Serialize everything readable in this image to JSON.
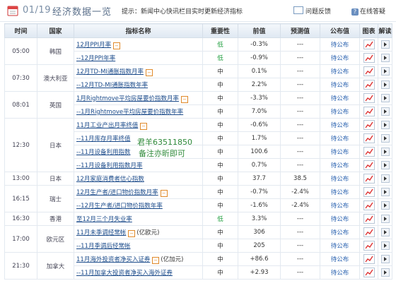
{
  "header": {
    "date": "01/19",
    "title": "经济数据一览",
    "tip": "提示：新闻中心快讯栏目实时更新经济指标",
    "feedback": "问题反馈",
    "online_answer": "在线答疑"
  },
  "columns": [
    "时间",
    "国家",
    "指标名称",
    "重要性",
    "前值",
    "预测值",
    "公布值",
    "图表",
    "解读"
  ],
  "rows": [
    {
      "time": "05:00",
      "country": "韩国",
      "span": 2,
      "name": "12月PPI月率",
      "has_mark": true,
      "importance": "低",
      "prev": "-0.3%",
      "forecast": "---",
      "actual": "待公布",
      "sub": false
    },
    {
      "name": "--12月PPI年率",
      "has_mark": false,
      "importance": "低",
      "prev": "-0.9%",
      "forecast": "---",
      "actual": "待公布",
      "sub": true
    },
    {
      "time": "07:30",
      "country": "澳大利亚",
      "span": 2,
      "name": "12月TD-MI通胀指数月率",
      "has_mark": true,
      "importance": "中",
      "prev": "0.1%",
      "forecast": "---",
      "actual": "待公布",
      "sub": false
    },
    {
      "name": "--12月TD-MI通胀指数年率",
      "has_mark": false,
      "importance": "中",
      "prev": "2.2%",
      "forecast": "---",
      "actual": "待公布",
      "sub": true
    },
    {
      "time": "08:01",
      "country": "英国",
      "span": 2,
      "name": "1月Rightmove平均房屋要价指数月率",
      "has_mark": true,
      "importance": "中",
      "prev": "-3.3%",
      "forecast": "---",
      "actual": "待公布",
      "sub": false
    },
    {
      "name": "--1月Rightmove平均房屋要价指数年率",
      "has_mark": false,
      "importance": "中",
      "prev": "7.0%",
      "forecast": "---",
      "actual": "待公布",
      "sub": true
    },
    {
      "time": "12:30",
      "country": "日本",
      "span": 4,
      "name": "11月工业产出月率终值",
      "has_mark": true,
      "importance": "中",
      "prev": "-0.6%",
      "forecast": "---",
      "actual": "待公布",
      "sub": false
    },
    {
      "name": "--11月库存月率终值",
      "has_mark": false,
      "importance": "中",
      "prev": "1.7%",
      "forecast": "---",
      "actual": "待公布",
      "sub": true
    },
    {
      "name": "--11月设备利用指数",
      "has_mark": false,
      "importance": "中",
      "prev": "100.6",
      "forecast": "---",
      "actual": "待公布",
      "sub": true
    },
    {
      "name": "--11月设备利用指数月率",
      "has_mark": false,
      "importance": "中",
      "prev": "0.7%",
      "forecast": "---",
      "actual": "待公布",
      "sub": true
    },
    {
      "time": "13:00",
      "country": "日本",
      "span": 1,
      "name": "12月家庭消费者信心指数",
      "has_mark": false,
      "importance": "中",
      "prev": "37.7",
      "forecast": "38.5",
      "actual": "待公布",
      "sub": false
    },
    {
      "time": "16:15",
      "country": "瑞士",
      "span": 2,
      "name": "12月生产者/进口物价指数月率",
      "has_mark": true,
      "importance": "中",
      "prev": "-0.7%",
      "forecast": "-2.4%",
      "actual": "待公布",
      "sub": false
    },
    {
      "name": "--12月生产者/进口物价指数年率",
      "has_mark": false,
      "importance": "中",
      "prev": "-1.6%",
      "forecast": "-2.4%",
      "actual": "待公布",
      "sub": true
    },
    {
      "time": "16:30",
      "country": "香港",
      "span": 1,
      "name": "至12月三个月失业率",
      "has_mark": false,
      "importance": "低",
      "prev": "3.3%",
      "forecast": "---",
      "actual": "待公布",
      "sub": false
    },
    {
      "time": "17:00",
      "country": "欧元区",
      "span": 2,
      "name": "11月未季调经常帐",
      "has_mark": true,
      "unit": "(亿欧元)",
      "importance": "中",
      "prev": "306",
      "forecast": "---",
      "actual": "待公布",
      "sub": false
    },
    {
      "name": "--11月季调后经常帐",
      "has_mark": false,
      "importance": "中",
      "prev": "205",
      "forecast": "---",
      "actual": "待公布",
      "sub": true
    },
    {
      "time": "21:30",
      "country": "加拿大",
      "span": 2,
      "name": "11月海外投资者净买入证券",
      "has_mark": true,
      "unit": "(亿加元)",
      "importance": "中",
      "prev": "+86.6",
      "forecast": "---",
      "actual": "待公布",
      "sub": false
    },
    {
      "name": "--11月加拿大投资者净买入海外证券",
      "has_mark": false,
      "importance": "中",
      "prev": "+2.93",
      "forecast": "---",
      "actual": "待公布",
      "sub": true
    }
  ],
  "watermark": {
    "line1": "君羊63511850",
    "line2": "备注亦昕即可"
  },
  "colors": {
    "accent": "#5a6f8a",
    "low": "#1a9c3a",
    "pending": "#2a62b0",
    "mark": "#e08a2a"
  }
}
